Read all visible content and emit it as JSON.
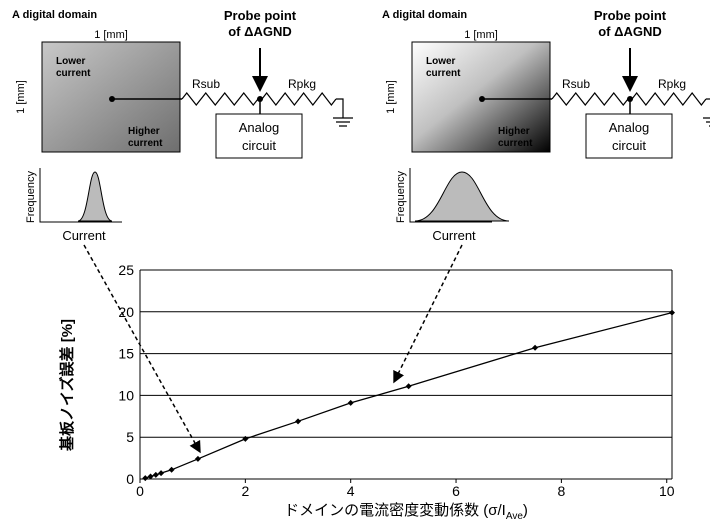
{
  "diagrams": [
    {
      "title": "A digital domain",
      "width_label": "1 [mm]",
      "height_label": "1 [mm]",
      "lower": [
        "Lower",
        "current"
      ],
      "higher": [
        "Higher",
        "current"
      ],
      "rsub": "Rsub",
      "rpkg": "Rpkg",
      "probe": [
        "Probe point",
        "of ΔAGND"
      ],
      "analog": [
        "Analog",
        "circuit"
      ],
      "ylabel": "Frequency",
      "xlabel": "Current"
    },
    {
      "title": "A digital domain",
      "width_label": "1 [mm]",
      "height_label": "1 [mm]",
      "lower": [
        "Lower",
        "current"
      ],
      "higher": [
        "Higher",
        "current"
      ],
      "rsub": "Rsub",
      "rpkg": "Rpkg",
      "probe": [
        "Probe point",
        "of ΔAGND"
      ],
      "analog": [
        "Analog",
        "circuit"
      ],
      "ylabel": "Frequency",
      "xlabel": "Current"
    }
  ],
  "chart_data": {
    "type": "line",
    "color": "#000000",
    "x": [
      0.1,
      0.2,
      0.3,
      0.4,
      0.6,
      1.1,
      2.0,
      3.0,
      4.0,
      5.1,
      7.5,
      10.1
    ],
    "values": [
      0.1,
      0.3,
      0.5,
      0.7,
      1.1,
      2.4,
      4.8,
      6.9,
      9.1,
      11.1,
      15.7,
      19.9
    ],
    "xlim": [
      0,
      10.1
    ],
    "ylim": [
      0,
      25
    ],
    "xticks": [
      0,
      2,
      4,
      6,
      8,
      10
    ],
    "yticks": [
      0,
      5,
      10,
      15,
      20,
      25
    ],
    "grid": true,
    "ylabel": "基板ノイズ誤差 [%]",
    "xlabel": {
      "main": "ドメインの電流密度変動係数 (σ/I",
      "sub": "Ave",
      "end": ")"
    }
  }
}
